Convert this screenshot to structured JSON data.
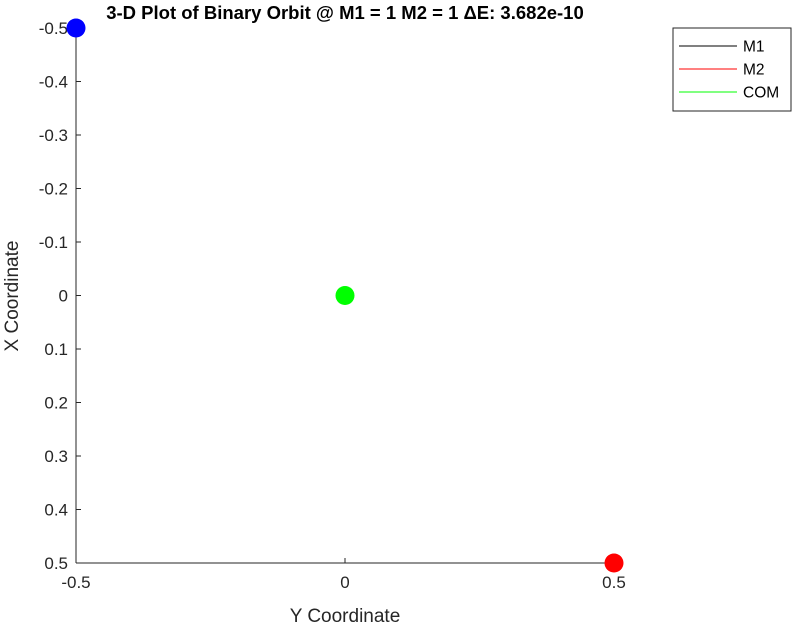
{
  "chart_data": {
    "type": "scatter",
    "title": "3-D Plot of Binary Orbit @ M1 = 1 M2 = 1 ΔE: 3.682e-10",
    "xlabel": "Y Coordinate",
    "ylabel": "X Coordinate",
    "xlim": [
      -0.5,
      0.5
    ],
    "ylim": [
      -0.5,
      0.5
    ],
    "y_reversed": true,
    "grid": false,
    "x_ticks": [
      {
        "value": -0.5,
        "label": "-0.5"
      },
      {
        "value": 0,
        "label": "0"
      },
      {
        "value": 0.5,
        "label": "0.5"
      }
    ],
    "y_ticks": [
      {
        "value": -0.5,
        "label": "-0.5"
      },
      {
        "value": -0.4,
        "label": "-0.4"
      },
      {
        "value": -0.3,
        "label": "-0.3"
      },
      {
        "value": -0.2,
        "label": "-0.2"
      },
      {
        "value": -0.1,
        "label": "-0.1"
      },
      {
        "value": 0,
        "label": "0"
      },
      {
        "value": 0.1,
        "label": "0.1"
      },
      {
        "value": 0.2,
        "label": "0.2"
      },
      {
        "value": 0.3,
        "label": "0.3"
      },
      {
        "value": 0.4,
        "label": "0.4"
      },
      {
        "value": 0.5,
        "label": "0.5"
      }
    ],
    "legend_position": "top-right",
    "series": [
      {
        "name": "M1",
        "line_color": "#000000",
        "marker_color": "#0000ff",
        "points": [
          {
            "x": -0.5,
            "y": -0.5
          }
        ]
      },
      {
        "name": "M2",
        "line_color": "#ff0000",
        "marker_color": "#ff0000",
        "points": [
          {
            "x": 0.5,
            "y": 0.5
          }
        ]
      },
      {
        "name": "COM",
        "line_color": "#00ff00",
        "marker_color": "#00ff00",
        "points": [
          {
            "x": 0,
            "y": 0
          }
        ]
      }
    ]
  }
}
